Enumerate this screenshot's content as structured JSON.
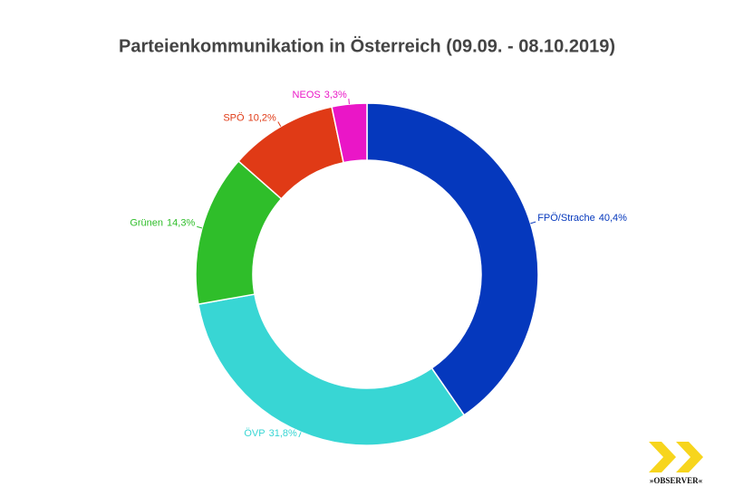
{
  "chart_data": {
    "type": "donut",
    "title": "Parteienkommunikation in Österreich (09.09. - 08.10.2019)",
    "categories": [
      "FPÖ/Strache",
      "ÖVP",
      "Grünen",
      "SPÖ",
      "NEOS"
    ],
    "values": [
      40.4,
      31.8,
      14.3,
      10.2,
      3.3
    ],
    "value_labels": [
      "40,4%",
      "31,8%",
      "14,3%",
      "10,2%",
      "3,3%"
    ],
    "colors": [
      "#0538bd",
      "#38d6d4",
      "#2fbe2a",
      "#e03a16",
      "#ea16c7"
    ]
  },
  "logo": "»OBSERVER«"
}
